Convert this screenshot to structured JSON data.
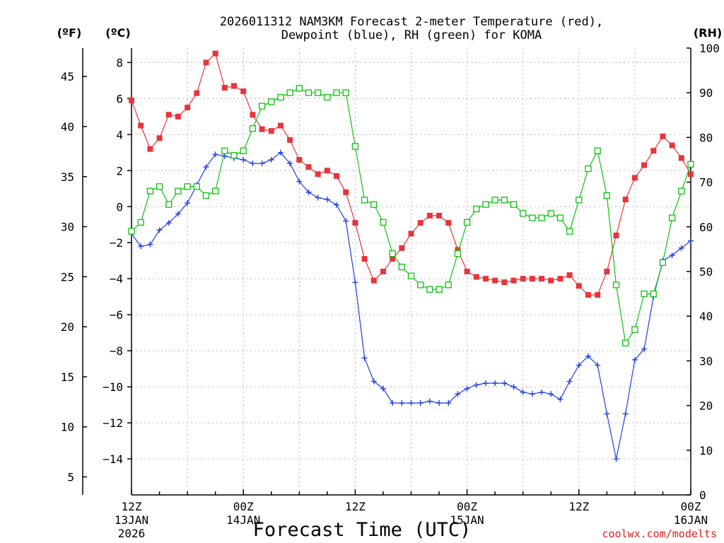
{
  "title_lines": [
    "2026011312 NAM3KM Forecast 2-meter Temperature (red),",
    "Dewpoint (blue), RH (green) for KOMA"
  ],
  "units": {
    "fahrenheit": "(ºF)",
    "celsius": "(ºC)",
    "rh": "(RH)"
  },
  "x_ticks": [
    {
      "hour": 0,
      "line1": "12Z",
      "line2": "13JAN",
      "line3": "2026"
    },
    {
      "hour": 12,
      "line1": "00Z",
      "line2": "14JAN",
      "line3": ""
    },
    {
      "hour": 24,
      "line1": "12Z",
      "line2": "",
      "line3": ""
    },
    {
      "hour": 36,
      "line1": "00Z",
      "line2": "15JAN",
      "line3": ""
    },
    {
      "hour": 48,
      "line1": "12Z",
      "line2": "",
      "line3": ""
    },
    {
      "hour": 60,
      "line1": "00Z",
      "line2": "16JAN",
      "line3": ""
    }
  ],
  "xlabel": "Forecast Time (UTC)",
  "credit": "coolwx.com/modelts",
  "chart_data": {
    "type": "line",
    "title": "2026011312 NAM3KM Forecast 2-meter Temperature (red), Dewpoint (blue), RH (green) for KOMA",
    "xlabel": "Forecast Time (UTC)",
    "x_range_hours": [
      0,
      60
    ],
    "celsius_axis": {
      "range": [
        -16,
        8.8
      ],
      "ticks": [
        8,
        6,
        4,
        2,
        0,
        -2,
        -4,
        -6,
        -8,
        -10,
        -12,
        -14
      ]
    },
    "fahrenheit_axis": {
      "range": [
        3.2,
        47.84
      ],
      "ticks": [
        45,
        40,
        35,
        30,
        25,
        20,
        15,
        10,
        5
      ]
    },
    "rh_axis": {
      "range": [
        0,
        100
      ],
      "ticks": [
        100,
        90,
        80,
        70,
        60,
        50,
        40,
        30,
        20,
        10,
        0
      ]
    },
    "grid": true,
    "series": [
      {
        "name": "2-meter Temperature",
        "color": "#e8343a",
        "marker": "filled-square",
        "axis": "celsius",
        "x_hours": [
          0,
          1,
          2,
          3,
          4,
          5,
          6,
          7,
          8,
          9,
          10,
          11,
          12,
          13,
          14,
          15,
          16,
          17,
          18,
          19,
          20,
          21,
          22,
          23,
          24,
          25,
          26,
          27,
          28,
          29,
          30,
          31,
          32,
          33,
          34,
          35,
          36,
          37,
          38,
          39,
          40,
          41,
          42,
          43,
          44,
          45,
          46,
          47,
          48,
          49,
          50,
          51,
          52,
          53,
          54,
          55,
          56,
          57,
          58,
          59,
          60
        ],
        "values": [
          5.9,
          4.5,
          3.2,
          3.8,
          5.1,
          5.0,
          5.5,
          6.3,
          8.0,
          8.5,
          6.6,
          6.7,
          6.4,
          5.1,
          4.3,
          4.2,
          4.5,
          3.7,
          2.6,
          2.2,
          1.8,
          2.0,
          1.7,
          0.8,
          -0.9,
          -2.9,
          -4.1,
          -3.6,
          -2.9,
          -2.3,
          -1.5,
          -0.9,
          -0.5,
          -0.5,
          -0.9,
          -2.4,
          -3.6,
          -3.9,
          -4.0,
          -4.1,
          -4.2,
          -4.1,
          -4.0,
          -4.0,
          -4.0,
          -4.1,
          -4.0,
          -3.8,
          -4.4,
          -4.9,
          -4.9,
          -3.6,
          -1.6,
          0.4,
          1.6,
          2.3,
          3.1,
          3.9,
          3.4,
          2.7,
          1.8
        ]
      },
      {
        "name": "Dewpoint",
        "color": "#1f3fe0",
        "marker": "plus",
        "axis": "celsius",
        "x_hours": [
          0,
          1,
          2,
          3,
          4,
          5,
          6,
          7,
          8,
          9,
          10,
          11,
          12,
          13,
          14,
          15,
          16,
          17,
          18,
          19,
          20,
          21,
          22,
          23,
          24,
          25,
          26,
          27,
          28,
          29,
          30,
          31,
          32,
          33,
          34,
          35,
          36,
          37,
          38,
          39,
          40,
          41,
          42,
          43,
          44,
          45,
          46,
          47,
          48,
          49,
          50,
          51,
          52,
          53,
          54,
          55,
          56,
          57,
          58,
          59,
          60
        ],
        "values": [
          -1.5,
          -2.2,
          -2.1,
          -1.3,
          -0.9,
          -0.4,
          0.2,
          1.2,
          2.2,
          2.9,
          2.8,
          2.7,
          2.6,
          2.4,
          2.4,
          2.6,
          3.0,
          2.4,
          1.4,
          0.8,
          0.5,
          0.4,
          0.1,
          -0.8,
          -4.2,
          -8.4,
          -9.7,
          -10.1,
          -10.9,
          -10.9,
          -10.9,
          -10.9,
          -10.8,
          -10.9,
          -10.9,
          -10.4,
          -10.1,
          -9.9,
          -9.8,
          -9.8,
          -9.8,
          -10.0,
          -10.3,
          -10.4,
          -10.3,
          -10.4,
          -10.7,
          -9.7,
          -8.8,
          -8.3,
          -8.8,
          -11.5,
          -14.0,
          -11.5,
          -8.5,
          -7.9,
          -5.0,
          -3.0,
          -2.7,
          -2.3,
          -1.9
        ]
      },
      {
        "name": "RH",
        "color": "#10c010",
        "marker": "open-square",
        "axis": "rh",
        "x_hours": [
          0,
          1,
          2,
          3,
          4,
          5,
          6,
          7,
          8,
          9,
          10,
          11,
          12,
          13,
          14,
          15,
          16,
          17,
          18,
          19,
          20,
          21,
          22,
          23,
          24,
          25,
          26,
          27,
          28,
          29,
          30,
          31,
          32,
          33,
          34,
          35,
          36,
          37,
          38,
          39,
          40,
          41,
          42,
          43,
          44,
          45,
          46,
          47,
          48,
          49,
          50,
          51,
          52,
          53,
          54,
          55,
          56,
          57,
          58,
          59,
          60
        ],
        "values": [
          59,
          61,
          68,
          69,
          65,
          68,
          69,
          69,
          67,
          68,
          77,
          76,
          77,
          82,
          87,
          88,
          89,
          90,
          91,
          90,
          90,
          89,
          90,
          90,
          78,
          66,
          65,
          61,
          54,
          51,
          49,
          47,
          46,
          46,
          47,
          54,
          61,
          64,
          65,
          66,
          66,
          65,
          63,
          62,
          62,
          63,
          62,
          59,
          66,
          73,
          77,
          67,
          47,
          34,
          37,
          45,
          45,
          52,
          62,
          68,
          74
        ]
      }
    ]
  }
}
